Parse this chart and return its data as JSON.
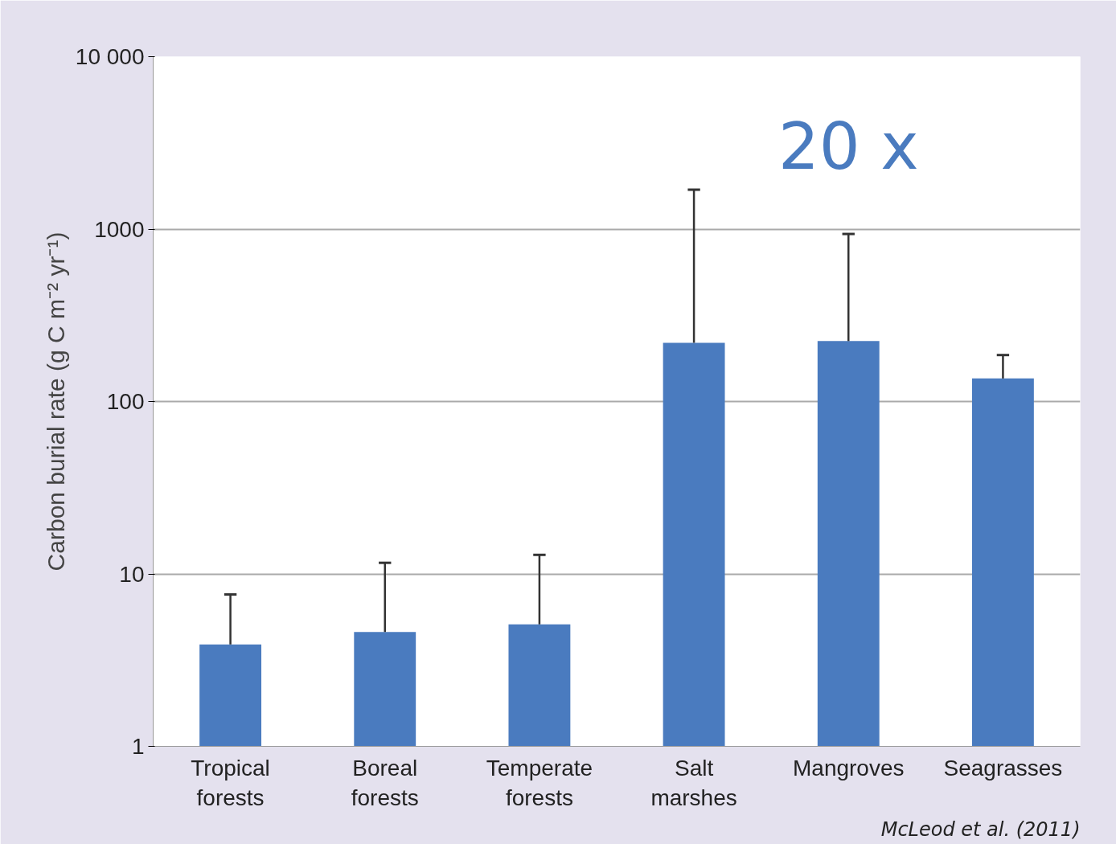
{
  "chart_data": {
    "type": "bar",
    "ylabel": "Carbon burial rate (g C m⁻² yr⁻¹)",
    "categories": [
      "Tropical forests",
      "Boreal forests",
      "Temperate forests",
      "Salt marshes",
      "Mangroves",
      "Seagrasses"
    ],
    "values": [
      3.9,
      4.6,
      5.1,
      219,
      224,
      136
    ],
    "errors": [
      [
        3.9,
        7.6
      ],
      [
        4.6,
        11.6
      ],
      [
        5.1,
        12.9
      ],
      [
        219,
        1690
      ],
      [
        224,
        937
      ],
      [
        136,
        186
      ]
    ],
    "color": "#4a7bbf",
    "log": true,
    "ylim": [
      1,
      10000
    ],
    "yticks": [
      1,
      10,
      100,
      1000,
      {
        "value": 10000,
        "label": "10 000"
      }
    ],
    "grid": "y",
    "annotations": [
      "20 x",
      "McLeod et al. (2011)"
    ]
  }
}
